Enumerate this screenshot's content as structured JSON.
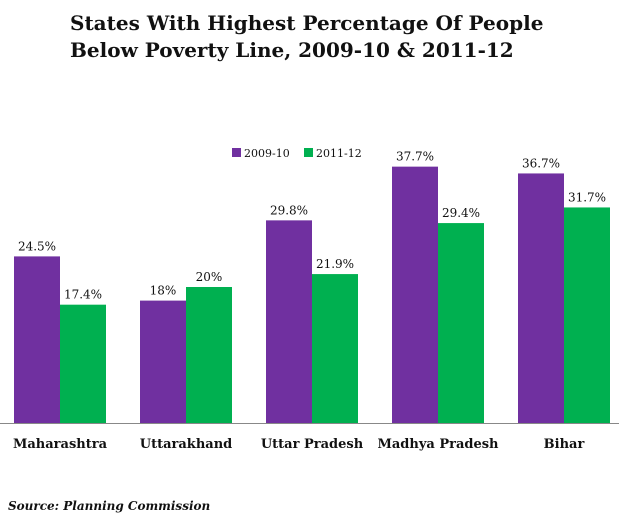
{
  "chart_data": {
    "type": "bar",
    "title_lines": [
      "States With Highest Percentage Of People",
      "Below Poverty Line, 2009-10 & 2011-12"
    ],
    "categories": [
      "Maharashtra",
      "Uttarakhand",
      "Uttar Pradesh",
      "Madhya Pradesh",
      "Bihar"
    ],
    "series": [
      {
        "name": "2009-10",
        "color": "#7030a0",
        "values": [
          24.5,
          18,
          29.8,
          37.7,
          36.7
        ],
        "labels": [
          "24.5%",
          "18%",
          "29.8%",
          "37.7%",
          "36.7%"
        ]
      },
      {
        "name": "2011-12",
        "color": "#00b050",
        "values": [
          17.4,
          20,
          21.9,
          29.4,
          31.7
        ],
        "labels": [
          "17.4%",
          "20%",
          "21.9%",
          "29.4%",
          "31.7%"
        ]
      }
    ],
    "xlabel": "",
    "ylabel": "",
    "legend_position": "top-center",
    "grid": false
  },
  "source": "Source: Planning Commission"
}
